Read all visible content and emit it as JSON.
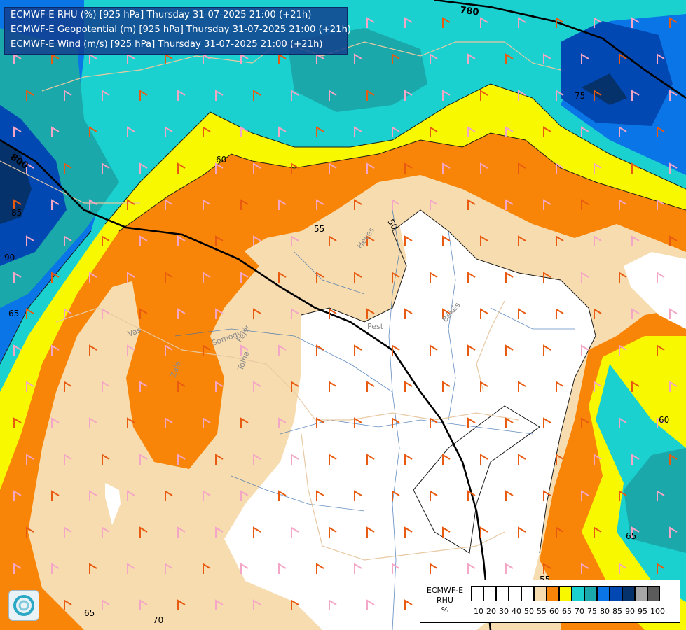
{
  "titles": [
    "ECMWF-E RHU (%) [925 hPa] Thursday 31-07-2025 21:00 (+21h)",
    "ECMWF-E Geopotential (m) [925 hPa] Thursday 31-07-2025 21:00 (+21h)",
    "ECMWF-E Wind (m/s) [925 hPa] Thursday 31-07-2025 21:00 (+21h)"
  ],
  "contour_labels": {
    "c60_a": "60",
    "c55_a": "55",
    "c50": "50",
    "c60_b": "60",
    "c65_a": "65",
    "c65_b": "65",
    "c65_c": "65",
    "c70": "70",
    "c75": "75",
    "c85": "85",
    "c90": "90",
    "c55_b": "55"
  },
  "geopotential_labels": {
    "z800": "800",
    "z780": "780"
  },
  "place_labels": [
    "Heves",
    "Pest",
    "Békés",
    "Vas",
    "Zala",
    "Somogy",
    "Fejér",
    "Tolna"
  ],
  "legend": {
    "name": "ECMWF-E RHU %",
    "name_lines": [
      "ECMWF-E",
      "RHU",
      "%"
    ],
    "ticks": [
      "10",
      "20",
      "30",
      "40",
      "50",
      "55",
      "60",
      "65",
      "70",
      "75",
      "80",
      "85",
      "90",
      "95",
      "100"
    ],
    "colors": [
      "#ffffff",
      "#ffffff",
      "#ffffff",
      "#ffffff",
      "#ffffff",
      "#f7dcb0",
      "#f98508",
      "#f8f800",
      "#1ad1d0",
      "#1aa8aa",
      "#0a75e6",
      "#0248b3",
      "#06326b",
      "#a7a7a7",
      "#5b5b5b"
    ]
  },
  "colors": {
    "white": "#ffffff",
    "tan": "#f7dcb0",
    "orange": "#f98508",
    "yellow": "#f8f800",
    "cyan": "#1ad1d0",
    "teal": "#1aa8aa",
    "blue": "#0a75e6",
    "darkblue": "#0248b3",
    "navy": "#06326b",
    "wind_pink": "#f4a6c6",
    "wind_orange": "#e85a10"
  }
}
